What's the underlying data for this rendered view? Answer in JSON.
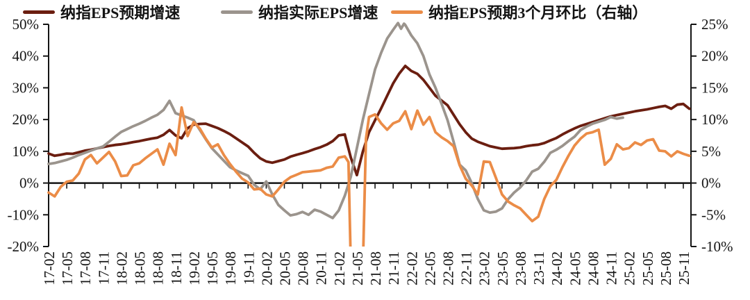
{
  "chart_data": {
    "type": "line",
    "title": "",
    "grid": false,
    "legend_position": "top-left",
    "x_unit": "months since 2017-02 (labels YY-MM, quarterly ticks)",
    "x_tick_labels": [
      "17-02",
      "17-05",
      "17-08",
      "17-11",
      "18-02",
      "18-05",
      "18-08",
      "18-11",
      "19-02",
      "19-05",
      "19-08",
      "19-11",
      "20-02",
      "20-05",
      "20-08",
      "20-11",
      "21-02",
      "21-05",
      "21-08",
      "21-11",
      "22-02",
      "22-05",
      "22-08",
      "22-11",
      "23-02",
      "23-05",
      "23-08",
      "23-11",
      "24-02",
      "24-05",
      "24-08",
      "24-11",
      "25-02",
      "25-05",
      "25-08",
      "25-11"
    ],
    "left_axis": {
      "max": 50,
      "min": -20,
      "ticks": [
        "50%",
        "40%",
        "30%",
        "20%",
        "10%",
        "0%",
        "-10%",
        "-20%"
      ]
    },
    "right_axis": {
      "max": 25,
      "min": -10,
      "ticks": [
        "25%",
        "20%",
        "15%",
        "10%",
        "5%",
        "0%",
        "-5%",
        "-10%"
      ]
    },
    "zero_line": true,
    "series": [
      {
        "id": "expected-eps-growth",
        "name": "纳指EPS预期增速",
        "axis": "left",
        "color": "#6b1e10",
        "points": [
          [
            0,
            9.3
          ],
          [
            1,
            8.6
          ],
          [
            2,
            8.9
          ],
          [
            3,
            9.3
          ],
          [
            4,
            9.2
          ],
          [
            5,
            9.7
          ],
          [
            6,
            10.2
          ],
          [
            7,
            10.5
          ],
          [
            8,
            10.9
          ],
          [
            9,
            11.3
          ],
          [
            10,
            11.7
          ],
          [
            11,
            12.0
          ],
          [
            12,
            12.2
          ],
          [
            13,
            12.5
          ],
          [
            14,
            12.9
          ],
          [
            15,
            13.2
          ],
          [
            16,
            13.6
          ],
          [
            17,
            14.0
          ],
          [
            18,
            14.3
          ],
          [
            19,
            15.2
          ],
          [
            20,
            16.7
          ],
          [
            21,
            15.0
          ],
          [
            22,
            14.1
          ],
          [
            23,
            17.3
          ],
          [
            24,
            18.4
          ],
          [
            25,
            18.6
          ],
          [
            26,
            18.7
          ],
          [
            27,
            18.0
          ],
          [
            28,
            17.3
          ],
          [
            29,
            16.4
          ],
          [
            30,
            15.4
          ],
          [
            31,
            14.1
          ],
          [
            32,
            12.8
          ],
          [
            33,
            11.5
          ],
          [
            34,
            9.5
          ],
          [
            35,
            7.8
          ],
          [
            36,
            6.8
          ],
          [
            37,
            6.4
          ],
          [
            38,
            6.9
          ],
          [
            39,
            7.4
          ],
          [
            40,
            8.3
          ],
          [
            41,
            8.9
          ],
          [
            42,
            9.4
          ],
          [
            43,
            10.0
          ],
          [
            44,
            10.7
          ],
          [
            45,
            11.3
          ],
          [
            46,
            12.1
          ],
          [
            47,
            13.2
          ],
          [
            48,
            15.0
          ],
          [
            49,
            15.3
          ],
          [
            50,
            8.0
          ],
          [
            51,
            2.5
          ],
          [
            52,
            10.0
          ],
          [
            53,
            16.0
          ],
          [
            54,
            19.8
          ],
          [
            55,
            23.5
          ],
          [
            56,
            27.5
          ],
          [
            57,
            31.4
          ],
          [
            58,
            34.5
          ],
          [
            59,
            36.9
          ],
          [
            60,
            35.3
          ],
          [
            61,
            34.4
          ],
          [
            62,
            32.5
          ],
          [
            63,
            30.0
          ],
          [
            64,
            27.5
          ],
          [
            65,
            26.0
          ],
          [
            66,
            24.5
          ],
          [
            67,
            21.5
          ],
          [
            68,
            18.5
          ],
          [
            69,
            16.0
          ],
          [
            70,
            14.0
          ],
          [
            71,
            13.0
          ],
          [
            72,
            12.3
          ],
          [
            73,
            11.6
          ],
          [
            74,
            11.2
          ],
          [
            75,
            10.8
          ],
          [
            76,
            10.9
          ],
          [
            77,
            11.0
          ],
          [
            78,
            11.2
          ],
          [
            79,
            11.6
          ],
          [
            80,
            11.9
          ],
          [
            81,
            12.1
          ],
          [
            82,
            12.6
          ],
          [
            83,
            13.4
          ],
          [
            84,
            14.2
          ],
          [
            85,
            15.3
          ],
          [
            86,
            16.3
          ],
          [
            87,
            17.2
          ],
          [
            88,
            18.0
          ],
          [
            89,
            18.6
          ],
          [
            90,
            19.2
          ],
          [
            91,
            19.8
          ],
          [
            92,
            20.4
          ],
          [
            93,
            21.0
          ],
          [
            94,
            21.4
          ],
          [
            95,
            21.8
          ],
          [
            96,
            22.2
          ],
          [
            97,
            22.6
          ],
          [
            98,
            22.9
          ],
          [
            99,
            23.2
          ],
          [
            100,
            23.6
          ],
          [
            101,
            24.0
          ],
          [
            102,
            24.3
          ],
          [
            103,
            23.4
          ],
          [
            104,
            24.7
          ],
          [
            105,
            24.9
          ],
          [
            106,
            23.4
          ]
        ]
      },
      {
        "id": "actual-eps-growth",
        "name": "纳指实际EPS增速",
        "axis": "left",
        "color": "#9b948d",
        "points": [
          [
            0,
            6.0
          ],
          [
            1,
            6.3
          ],
          [
            2,
            6.8
          ],
          [
            3,
            7.3
          ],
          [
            4,
            8.0
          ],
          [
            5,
            8.8
          ],
          [
            6,
            9.5
          ],
          [
            7,
            10.2
          ],
          [
            8,
            10.9
          ],
          [
            9,
            11.5
          ],
          [
            10,
            13.0
          ],
          [
            11,
            14.6
          ],
          [
            12,
            16.1
          ],
          [
            13,
            17.0
          ],
          [
            14,
            17.9
          ],
          [
            15,
            18.7
          ],
          [
            16,
            19.6
          ],
          [
            17,
            20.6
          ],
          [
            18,
            21.5
          ],
          [
            19,
            23.0
          ],
          [
            20,
            25.9
          ],
          [
            21,
            22.0
          ],
          [
            22,
            21.3
          ],
          [
            23,
            20.6
          ],
          [
            24,
            19.8
          ],
          [
            25,
            16.8
          ],
          [
            26,
            13.8
          ],
          [
            27,
            11.0
          ],
          [
            28,
            9.0
          ],
          [
            29,
            7.0
          ],
          [
            30,
            5.0
          ],
          [
            31,
            4.0
          ],
          [
            32,
            3.1
          ],
          [
            33,
            2.3
          ],
          [
            34,
            -0.5
          ],
          [
            35,
            -2.0
          ],
          [
            36,
            0.5
          ],
          [
            37,
            -3.6
          ],
          [
            38,
            -6.9
          ],
          [
            39,
            -8.6
          ],
          [
            40,
            -10.2
          ],
          [
            41,
            -9.8
          ],
          [
            42,
            -9.1
          ],
          [
            43,
            -10.0
          ],
          [
            44,
            -8.4
          ],
          [
            45,
            -9.0
          ],
          [
            46,
            -10.0
          ],
          [
            47,
            -11.0
          ],
          [
            48,
            -8.6
          ],
          [
            49,
            -4.0
          ],
          [
            50,
            2.0
          ],
          [
            51,
            11.0
          ],
          [
            52,
            20.0
          ],
          [
            53,
            28.0
          ],
          [
            54,
            35.8
          ],
          [
            55,
            41.0
          ],
          [
            56,
            45.5
          ],
          [
            57,
            48.3
          ],
          [
            57.8,
            50.4
          ],
          [
            58.3,
            48.6
          ],
          [
            58.8,
            50.2
          ],
          [
            59,
            49.8
          ],
          [
            60,
            46.5
          ],
          [
            61,
            44.0
          ],
          [
            62,
            40.0
          ],
          [
            63,
            34.2
          ],
          [
            64,
            30.0
          ],
          [
            65,
            25.0
          ],
          [
            66,
            19.8
          ],
          [
            67,
            13.0
          ],
          [
            68,
            5.8
          ],
          [
            69,
            4.0
          ],
          [
            70,
            0.0
          ],
          [
            71,
            -5.0
          ],
          [
            72,
            -8.6
          ],
          [
            73,
            -9.3
          ],
          [
            74,
            -9.0
          ],
          [
            75,
            -8.0
          ],
          [
            76,
            -5.1
          ],
          [
            77,
            -3.0
          ],
          [
            78,
            -1.4
          ],
          [
            79,
            0.8
          ],
          [
            80,
            3.6
          ],
          [
            81,
            4.5
          ],
          [
            82,
            6.7
          ],
          [
            83,
            9.5
          ],
          [
            84,
            10.5
          ],
          [
            85,
            11.7
          ],
          [
            86,
            13.2
          ],
          [
            87,
            14.6
          ],
          [
            88,
            16.7
          ],
          [
            89,
            17.8
          ],
          [
            90,
            18.7
          ],
          [
            91,
            19.3
          ],
          [
            92,
            19.9
          ],
          [
            93,
            20.8
          ],
          [
            94,
            20.3
          ],
          [
            95,
            20.6
          ]
        ]
      },
      {
        "id": "expected-eps-3m-momentum",
        "name": "纳指EPS预期3个月环比（右轴）",
        "axis": "right",
        "color": "#eb8c47",
        "points": [
          [
            0,
            -1.5
          ],
          [
            1,
            -2.1
          ],
          [
            2,
            -0.6
          ],
          [
            3,
            0.2
          ],
          [
            4,
            0.4
          ],
          [
            5,
            1.5
          ],
          [
            6,
            3.7
          ],
          [
            7,
            4.4
          ],
          [
            8,
            3.1
          ],
          [
            9,
            4.0
          ],
          [
            10,
            4.9
          ],
          [
            11,
            3.4
          ],
          [
            12,
            1.1
          ],
          [
            13,
            1.2
          ],
          [
            14,
            2.8
          ],
          [
            15,
            3.1
          ],
          [
            16,
            3.9
          ],
          [
            17,
            4.6
          ],
          [
            18,
            5.3
          ],
          [
            19,
            2.9
          ],
          [
            20,
            6.2
          ],
          [
            21,
            4.4
          ],
          [
            22,
            11.9
          ],
          [
            23,
            7.4
          ],
          [
            24,
            9.6
          ],
          [
            25,
            8.6
          ],
          [
            26,
            7.0
          ],
          [
            27,
            5.6
          ],
          [
            28,
            6.1
          ],
          [
            29,
            4.4
          ],
          [
            30,
            3.0
          ],
          [
            31,
            1.8
          ],
          [
            32,
            0.7
          ],
          [
            33,
            0.1
          ],
          [
            34,
            -1.0
          ],
          [
            35,
            -0.9
          ],
          [
            36,
            -1.8
          ],
          [
            37,
            -2.1
          ],
          [
            38,
            -1.0
          ],
          [
            39,
            0.2
          ],
          [
            40,
            0.9
          ],
          [
            41,
            1.3
          ],
          [
            42,
            1.7
          ],
          [
            43,
            1.8
          ],
          [
            44,
            1.9
          ],
          [
            45,
            2.0
          ],
          [
            46,
            2.4
          ],
          [
            47,
            2.6
          ],
          [
            48,
            4.0
          ],
          [
            49,
            4.2
          ],
          [
            49.6,
            3.3
          ],
          [
            50,
            -13
          ],
          [
            52,
            -13
          ],
          [
            52.5,
            7.0
          ],
          [
            53,
            10.4
          ],
          [
            54,
            10.8
          ],
          [
            55,
            9.4
          ],
          [
            56,
            8.4
          ],
          [
            57,
            9.4
          ],
          [
            58,
            9.8
          ],
          [
            59,
            11.3
          ],
          [
            60,
            8.5
          ],
          [
            61,
            11.4
          ],
          [
            62,
            9.2
          ],
          [
            63,
            10.4
          ],
          [
            64,
            8.0
          ],
          [
            65,
            7.2
          ],
          [
            66,
            6.6
          ],
          [
            67,
            5.8
          ],
          [
            68,
            2.8
          ],
          [
            69,
            0.7
          ],
          [
            70,
            -0.4
          ],
          [
            71,
            -1.8
          ],
          [
            72,
            3.4
          ],
          [
            73,
            3.3
          ],
          [
            74,
            0.8
          ],
          [
            75,
            -1.8
          ],
          [
            76,
            -2.9
          ],
          [
            77,
            -3.5
          ],
          [
            78,
            -4.0
          ],
          [
            79,
            -5.0
          ],
          [
            80,
            -6.0
          ],
          [
            81,
            -5.3
          ],
          [
            82,
            -2.5
          ],
          [
            83,
            -0.5
          ],
          [
            84,
            0.5
          ],
          [
            85,
            2.5
          ],
          [
            86,
            4.3
          ],
          [
            87,
            5.9
          ],
          [
            88,
            7.0
          ],
          [
            89,
            7.8
          ],
          [
            90,
            8.0
          ],
          [
            91,
            8.4
          ],
          [
            92,
            2.9
          ],
          [
            93,
            3.8
          ],
          [
            94,
            6.1
          ],
          [
            95,
            5.3
          ],
          [
            96,
            5.5
          ],
          [
            97,
            6.4
          ],
          [
            98,
            6.0
          ],
          [
            99,
            6.7
          ],
          [
            100,
            6.9
          ],
          [
            101,
            5.1
          ],
          [
            102,
            5.0
          ],
          [
            103,
            4.2
          ],
          [
            104,
            5.0
          ],
          [
            105,
            4.6
          ],
          [
            106,
            4.3
          ]
        ]
      }
    ]
  }
}
